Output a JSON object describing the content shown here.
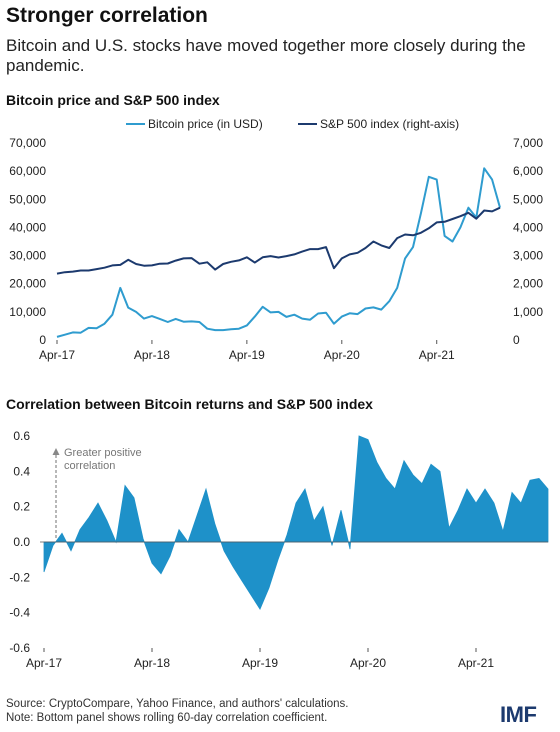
{
  "header": {
    "title": "Stronger correlation",
    "subtitle": "Bitcoin and U.S. stocks have moved together more closely during the pandemic."
  },
  "footer": {
    "source": "Source: CryptoCompare, Yahoo Finance, and authors' calculations.",
    "note": "Note: Bottom panel shows rolling 60-day correlation coefficient.",
    "logo": "IMF"
  },
  "colors": {
    "bitcoin": "#2f9ccf",
    "sp500": "#1c3a6e",
    "correlation": "#1e91c9",
    "zero_line": "#555555",
    "annotation": "#888888"
  },
  "chart_data": [
    {
      "type": "line",
      "title": "Bitcoin price and S&P 500 index",
      "x_ticks": [
        "Apr-17",
        "Apr-18",
        "Apr-19",
        "Apr-20",
        "Apr-21"
      ],
      "y_left": {
        "ticks": [
          "0",
          "10,000",
          "20,000",
          "30,000",
          "40,000",
          "50,000",
          "60,000",
          "70,000"
        ],
        "range": [
          0,
          70000
        ]
      },
      "y_right": {
        "ticks": [
          "0",
          "1,000",
          "2,000",
          "3,000",
          "4,000",
          "5,000",
          "6,000",
          "7,000"
        ],
        "range": [
          0,
          7000
        ]
      },
      "grid": false,
      "legend_position": "top",
      "series": [
        {
          "name": "Bitcoin price (in USD)",
          "axis": "left",
          "x": [
            "2017-04",
            "2017-05",
            "2017-06",
            "2017-07",
            "2017-08",
            "2017-09",
            "2017-10",
            "2017-11",
            "2017-12",
            "2018-01",
            "2018-02",
            "2018-03",
            "2018-04",
            "2018-05",
            "2018-06",
            "2018-07",
            "2018-08",
            "2018-09",
            "2018-10",
            "2018-11",
            "2018-12",
            "2019-01",
            "2019-02",
            "2019-03",
            "2019-04",
            "2019-05",
            "2019-06",
            "2019-07",
            "2019-08",
            "2019-09",
            "2019-10",
            "2019-11",
            "2019-12",
            "2020-01",
            "2020-02",
            "2020-03",
            "2020-04",
            "2020-05",
            "2020-06",
            "2020-07",
            "2020-08",
            "2020-09",
            "2020-10",
            "2020-11",
            "2020-12",
            "2021-01",
            "2021-02",
            "2021-03",
            "2021-04",
            "2021-05",
            "2021-06",
            "2021-07",
            "2021-08",
            "2021-09",
            "2021-10",
            "2021-11",
            "2021-12"
          ],
          "values": [
            1100,
            1900,
            2700,
            2600,
            4300,
            4200,
            5800,
            9000,
            18500,
            11500,
            10000,
            7600,
            8500,
            7500,
            6400,
            7500,
            6500,
            6600,
            6400,
            4000,
            3500,
            3500,
            3800,
            4000,
            5200,
            8300,
            11800,
            9800,
            10000,
            8200,
            9000,
            7600,
            7200,
            9400,
            9700,
            5800,
            8300,
            9500,
            9200,
            11200,
            11600,
            10800,
            13800,
            18500,
            29000,
            33000,
            45000,
            58000,
            57000,
            37000,
            35000,
            40000,
            47000,
            43500,
            61000,
            57000,
            47000
          ]
        },
        {
          "name": "S&P 500 index (right-axis)",
          "axis": "right",
          "x": [
            "2017-04",
            "2017-05",
            "2017-06",
            "2017-07",
            "2017-08",
            "2017-09",
            "2017-10",
            "2017-11",
            "2017-12",
            "2018-01",
            "2018-02",
            "2018-03",
            "2018-04",
            "2018-05",
            "2018-06",
            "2018-07",
            "2018-08",
            "2018-09",
            "2018-10",
            "2018-11",
            "2018-12",
            "2019-01",
            "2019-02",
            "2019-03",
            "2019-04",
            "2019-05",
            "2019-06",
            "2019-07",
            "2019-08",
            "2019-09",
            "2019-10",
            "2019-11",
            "2019-12",
            "2020-01",
            "2020-02",
            "2020-03",
            "2020-04",
            "2020-05",
            "2020-06",
            "2020-07",
            "2020-08",
            "2020-09",
            "2020-10",
            "2020-11",
            "2020-12",
            "2021-01",
            "2021-02",
            "2021-03",
            "2021-04",
            "2021-05",
            "2021-06",
            "2021-07",
            "2021-08",
            "2021-09",
            "2021-10",
            "2021-11",
            "2021-12"
          ],
          "values": [
            2360,
            2410,
            2430,
            2470,
            2470,
            2520,
            2570,
            2650,
            2670,
            2850,
            2700,
            2640,
            2650,
            2710,
            2720,
            2820,
            2900,
            2910,
            2710,
            2760,
            2500,
            2700,
            2780,
            2830,
            2940,
            2750,
            2940,
            2980,
            2930,
            2980,
            3040,
            3140,
            3230,
            3230,
            3300,
            2550,
            2900,
            3040,
            3100,
            3270,
            3500,
            3360,
            3270,
            3620,
            3750,
            3720,
            3810,
            3970,
            4180,
            4200,
            4300,
            4400,
            4520,
            4310,
            4600,
            4570,
            4700
          ]
        }
      ]
    },
    {
      "type": "area",
      "title": "Correlation between Bitcoin returns and S&P 500 index",
      "x_ticks": [
        "Apr-17",
        "Apr-18",
        "Apr-19",
        "Apr-20",
        "Apr-21"
      ],
      "y_ticks": [
        "0.6",
        "0.4",
        "0.2",
        "0.0",
        "-0.2",
        "-0.4",
        "-0.6"
      ],
      "ylim": [
        -0.6,
        0.6
      ],
      "annotation": "Greater positive correlation",
      "x": [
        "2017-04",
        "2017-05",
        "2017-06",
        "2017-07",
        "2017-08",
        "2017-09",
        "2017-10",
        "2017-11",
        "2017-12",
        "2018-01",
        "2018-02",
        "2018-03",
        "2018-04",
        "2018-05",
        "2018-06",
        "2018-07",
        "2018-08",
        "2018-09",
        "2018-10",
        "2018-11",
        "2018-12",
        "2019-01",
        "2019-02",
        "2019-03",
        "2019-04",
        "2019-05",
        "2019-06",
        "2019-07",
        "2019-08",
        "2019-09",
        "2019-10",
        "2019-11",
        "2019-12",
        "2020-01",
        "2020-02",
        "2020-03",
        "2020-04",
        "2020-05",
        "2020-06",
        "2020-07",
        "2020-08",
        "2020-09",
        "2020-10",
        "2020-11",
        "2020-12",
        "2021-01",
        "2021-02",
        "2021-03",
        "2021-04",
        "2021-05",
        "2021-06",
        "2021-07",
        "2021-08",
        "2021-09",
        "2021-10",
        "2021-11",
        "2021-12"
      ],
      "values": [
        -0.17,
        -0.02,
        0.05,
        -0.05,
        0.07,
        0.14,
        0.22,
        0.12,
        0.0,
        0.32,
        0.25,
        0.02,
        -0.12,
        -0.18,
        -0.08,
        0.07,
        0.0,
        0.15,
        0.3,
        0.1,
        -0.05,
        -0.14,
        -0.22,
        -0.3,
        -0.38,
        -0.26,
        -0.1,
        0.04,
        0.22,
        0.3,
        0.12,
        0.2,
        -0.02,
        0.18,
        -0.04,
        0.6,
        0.58,
        0.45,
        0.36,
        0.3,
        0.46,
        0.38,
        0.33,
        0.44,
        0.4,
        0.08,
        0.18,
        0.3,
        0.22,
        0.3,
        0.22,
        0.06,
        0.28,
        0.22,
        0.35,
        0.36,
        0.3
      ]
    }
  ]
}
